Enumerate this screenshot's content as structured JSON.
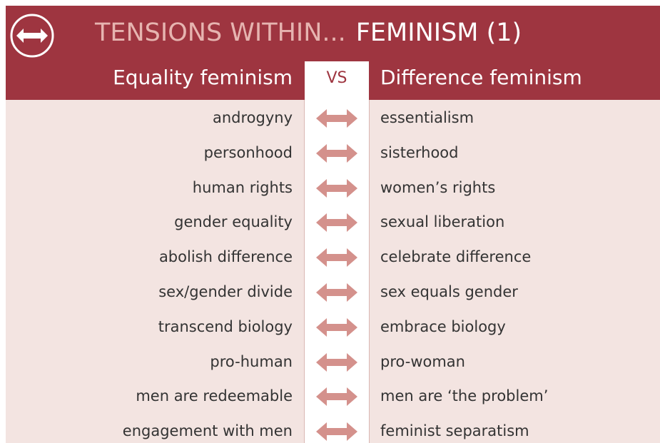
{
  "header": {
    "title_muted": "TENSIONS WITHIN...",
    "title_main": "FEMINISM (1)"
  },
  "columns": {
    "left": "Equality feminism",
    "vs": "VS",
    "right": "Difference feminism"
  },
  "rows": [
    {
      "left": "androgyny",
      "right": "essentialism"
    },
    {
      "left": "personhood",
      "right": "sisterhood"
    },
    {
      "left": "human rights",
      "right": "women’s rights"
    },
    {
      "left": "gender equality",
      "right": "sexual liberation"
    },
    {
      "left": "abolish difference",
      "right": "celebrate difference"
    },
    {
      "left": "sex/gender divide",
      "right": "sex equals gender"
    },
    {
      "left": "transcend biology",
      "right": "embrace biology"
    },
    {
      "left": "pro-human",
      "right": "pro-woman"
    },
    {
      "left": "men are redeemable",
      "right": "men are ‘the problem’"
    },
    {
      "left": "engagement with men",
      "right": "feminist separatism"
    }
  ]
}
